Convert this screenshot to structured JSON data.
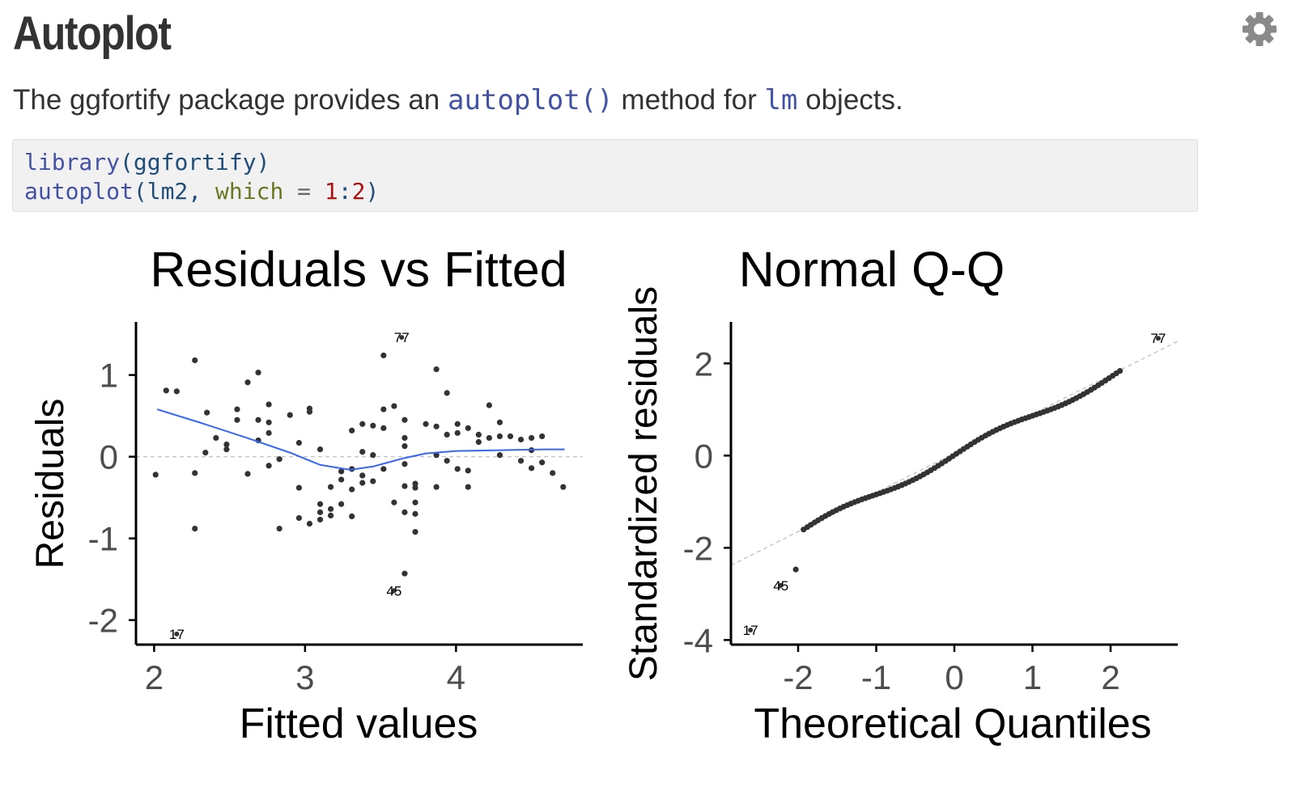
{
  "page": {
    "title": "Autoplot",
    "intro_before": "The ggfortify package provides an ",
    "intro_code1": "autoplot()",
    "intro_middle": " method for ",
    "intro_code2": "lm",
    "intro_after": " objects.",
    "settings_icon": "gear-icon"
  },
  "code": {
    "line1_fn": "library",
    "line1_rest": "(ggfortify)",
    "line2_fn": "autoplot",
    "line2_open": "(lm2, ",
    "line2_arg": "which",
    "line2_eq": " = ",
    "line2_num1": "1",
    "line2_colon": ":",
    "line2_num2": "2",
    "line2_close": ")"
  },
  "colors": {
    "point": "#333333",
    "smooth": "#3366ff",
    "reference": "#bbbbbb",
    "axis": "#000000",
    "tick_text": "#4d4d4d"
  },
  "chart_data": [
    {
      "type": "scatter",
      "title": "Residuals vs Fitted",
      "xlabel": "Fitted values",
      "ylabel": "Residuals",
      "xlim": [
        1.88,
        4.84
      ],
      "ylim": [
        -2.3,
        1.65
      ],
      "xticks": [
        2,
        3,
        4
      ],
      "yticks": [
        -2,
        -1,
        0,
        1
      ],
      "tick_labels_x": [
        "2",
        "3",
        "4"
      ],
      "tick_labels_y": [
        "-2",
        "-1",
        "0",
        "1"
      ],
      "reference_line": {
        "y": 0,
        "style": "dashed"
      },
      "points": [
        [
          2.01,
          -0.22
        ],
        [
          2.08,
          0.81
        ],
        [
          2.15,
          0.8
        ],
        [
          2.27,
          1.18
        ],
        [
          2.27,
          -0.2
        ],
        [
          2.27,
          -0.88
        ],
        [
          2.34,
          0.05
        ],
        [
          2.35,
          0.54
        ],
        [
          2.41,
          0.23
        ],
        [
          2.48,
          0.15
        ],
        [
          2.48,
          0.09
        ],
        [
          2.55,
          0.58
        ],
        [
          2.55,
          0.45
        ],
        [
          2.62,
          -0.21
        ],
        [
          2.62,
          0.91
        ],
        [
          2.69,
          1.03
        ],
        [
          2.69,
          0.45
        ],
        [
          2.69,
          0.2
        ],
        [
          2.76,
          0.42
        ],
        [
          2.76,
          0.64
        ],
        [
          2.76,
          0.29
        ],
        [
          2.76,
          -0.11
        ],
        [
          2.83,
          -0.03
        ],
        [
          2.83,
          -0.88
        ],
        [
          2.9,
          0.51
        ],
        [
          2.96,
          0.17
        ],
        [
          2.96,
          -0.38
        ],
        [
          2.96,
          -0.75
        ],
        [
          3.03,
          0.59
        ],
        [
          3.03,
          0.55
        ],
        [
          3.03,
          -0.82
        ],
        [
          3.1,
          0.09
        ],
        [
          3.1,
          -0.58
        ],
        [
          3.1,
          -0.68
        ],
        [
          3.1,
          -0.77
        ],
        [
          3.17,
          -0.37
        ],
        [
          3.17,
          -0.64
        ],
        [
          3.17,
          -0.72
        ],
        [
          3.24,
          -0.58
        ],
        [
          3.24,
          -0.18
        ],
        [
          3.24,
          -0.28
        ],
        [
          3.31,
          0.32
        ],
        [
          3.31,
          -0.15
        ],
        [
          3.31,
          -0.4
        ],
        [
          3.31,
          -0.73
        ],
        [
          3.38,
          0.4
        ],
        [
          3.38,
          0.06
        ],
        [
          3.38,
          -0.23
        ],
        [
          3.38,
          -0.32
        ],
        [
          3.45,
          0.38
        ],
        [
          3.45,
          0.02
        ],
        [
          3.45,
          -0.3
        ],
        [
          3.52,
          1.24
        ],
        [
          3.52,
          0.58
        ],
        [
          3.52,
          0.35
        ],
        [
          3.52,
          -0.15
        ],
        [
          3.59,
          0.62
        ],
        [
          3.59,
          -0.56
        ],
        [
          3.66,
          0.45
        ],
        [
          3.66,
          0.23
        ],
        [
          3.66,
          0.13
        ],
        [
          3.66,
          -0.09
        ],
        [
          3.66,
          -0.36
        ],
        [
          3.66,
          -0.68
        ],
        [
          3.66,
          -1.43
        ],
        [
          3.73,
          -0.33
        ],
        [
          3.73,
          -0.38
        ],
        [
          3.73,
          -0.56
        ],
        [
          3.73,
          -0.7
        ],
        [
          3.73,
          -0.92
        ],
        [
          3.8,
          0.4
        ],
        [
          3.87,
          1.07
        ],
        [
          3.87,
          0.37
        ],
        [
          3.87,
          0.02
        ],
        [
          3.87,
          -0.37
        ],
        [
          3.94,
          0.78
        ],
        [
          3.94,
          0.27
        ],
        [
          3.94,
          -0.05
        ],
        [
          4.01,
          0.4
        ],
        [
          4.01,
          0.29
        ],
        [
          4.01,
          -0.15
        ],
        [
          4.08,
          0.35
        ],
        [
          4.08,
          -0.17
        ],
        [
          4.08,
          -0.37
        ],
        [
          4.15,
          0.27
        ],
        [
          4.15,
          0.18
        ],
        [
          4.22,
          0.63
        ],
        [
          4.22,
          0.23
        ],
        [
          4.29,
          0.42
        ],
        [
          4.29,
          0.25
        ],
        [
          4.29,
          0.02
        ],
        [
          4.36,
          0.25
        ],
        [
          4.43,
          0.21
        ],
        [
          4.43,
          -0.05
        ],
        [
          4.5,
          0.23
        ],
        [
          4.5,
          0.08
        ],
        [
          4.5,
          -0.14
        ],
        [
          4.57,
          0.25
        ],
        [
          4.57,
          -0.07
        ],
        [
          4.64,
          -0.2
        ],
        [
          4.71,
          -0.37
        ]
      ],
      "labeled_points": [
        {
          "label": "77",
          "x": 3.64,
          "y": 1.48
        },
        {
          "label": "45",
          "x": 3.59,
          "y": -1.62
        },
        {
          "label": "17",
          "x": 2.15,
          "y": -2.15
        }
      ],
      "smooth": {
        "x": [
          2.02,
          2.3,
          2.6,
          2.9,
          3.1,
          3.3,
          3.45,
          3.55,
          3.65,
          3.8,
          4.0,
          4.3,
          4.6,
          4.72
        ],
        "y": [
          0.58,
          0.42,
          0.24,
          0.05,
          -0.1,
          -0.16,
          -0.12,
          -0.07,
          -0.02,
          0.04,
          0.07,
          0.08,
          0.09,
          0.09
        ]
      }
    },
    {
      "type": "scatter",
      "title": "Normal Q-Q",
      "xlabel": "Theoretical Quantiles",
      "ylabel": "Standardized residuals",
      "xlim": [
        -2.86,
        2.86
      ],
      "ylim": [
        -4.1,
        2.9
      ],
      "xticks": [
        -2,
        -1,
        0,
        1,
        2
      ],
      "yticks": [
        -4,
        -2,
        0,
        2
      ],
      "tick_labels_x": [
        "-2",
        "-1",
        "0",
        "1",
        "2"
      ],
      "tick_labels_y": [
        "-4",
        "-2",
        "0",
        "2"
      ],
      "reference_line": {
        "x": [
          -2.86,
          2.86
        ],
        "y": [
          -2.38,
          2.48
        ],
        "style": "dashed"
      },
      "labeled_points": [
        {
          "label": "77",
          "x": 2.61,
          "y": 2.58
        },
        {
          "label": "45",
          "x": -2.22,
          "y": -2.78
        },
        {
          "label": "17",
          "x": -2.61,
          "y": -3.75
        }
      ]
    }
  ]
}
